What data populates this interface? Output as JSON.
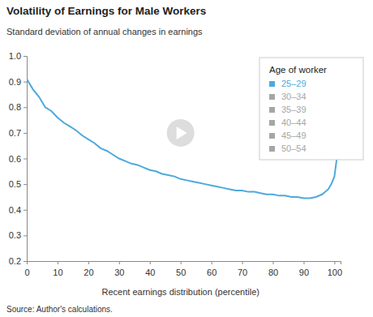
{
  "chart_data": {
    "type": "line",
    "title": "Volatility of Earnings for Male Workers",
    "subtitle": "Standard deviation of annual changes in earnings",
    "x_label": "Recent earnings distribution (percentile)",
    "source": "Source: Author's calculations.",
    "x": [
      0,
      1,
      2,
      4,
      6,
      8,
      10,
      12,
      14,
      16,
      18,
      20,
      22,
      24,
      26,
      28,
      30,
      32,
      34,
      36,
      38,
      40,
      42,
      44,
      46,
      48,
      50,
      52,
      54,
      56,
      58,
      60,
      62,
      64,
      66,
      68,
      70,
      72,
      74,
      76,
      78,
      80,
      82,
      84,
      86,
      88,
      90,
      92,
      94,
      96,
      98,
      99,
      100,
      101
    ],
    "series": [
      {
        "name": "25–29",
        "color": "#4ea9dd",
        "values": [
          0.91,
          0.89,
          0.87,
          0.84,
          0.8,
          0.785,
          0.76,
          0.74,
          0.725,
          0.71,
          0.69,
          0.675,
          0.66,
          0.64,
          0.63,
          0.615,
          0.6,
          0.59,
          0.58,
          0.575,
          0.565,
          0.555,
          0.55,
          0.54,
          0.535,
          0.53,
          0.52,
          0.515,
          0.51,
          0.505,
          0.5,
          0.495,
          0.49,
          0.485,
          0.48,
          0.475,
          0.475,
          0.47,
          0.47,
          0.465,
          0.46,
          0.46,
          0.455,
          0.455,
          0.45,
          0.45,
          0.445,
          0.445,
          0.45,
          0.46,
          0.48,
          0.5,
          0.53,
          0.62
        ]
      }
    ],
    "legend_title": "Age of worker",
    "inactive_legend_entries": [
      "30–34",
      "35–39",
      "40–44",
      "45–49",
      "50–54"
    ],
    "inactive_color": "#a6a6a6",
    "legend": "top-right",
    "grid": false,
    "xlim": [
      0,
      102
    ],
    "xticks": [
      0,
      10,
      20,
      30,
      40,
      50,
      60,
      70,
      80,
      90,
      100
    ],
    "ylim": [
      0.2,
      1.0
    ],
    "yticks": [
      0.2,
      0.3,
      0.4,
      0.5,
      0.6,
      0.7,
      0.8,
      0.9,
      {
        "value": 1.0,
        "label": "1.0"
      }
    ]
  }
}
